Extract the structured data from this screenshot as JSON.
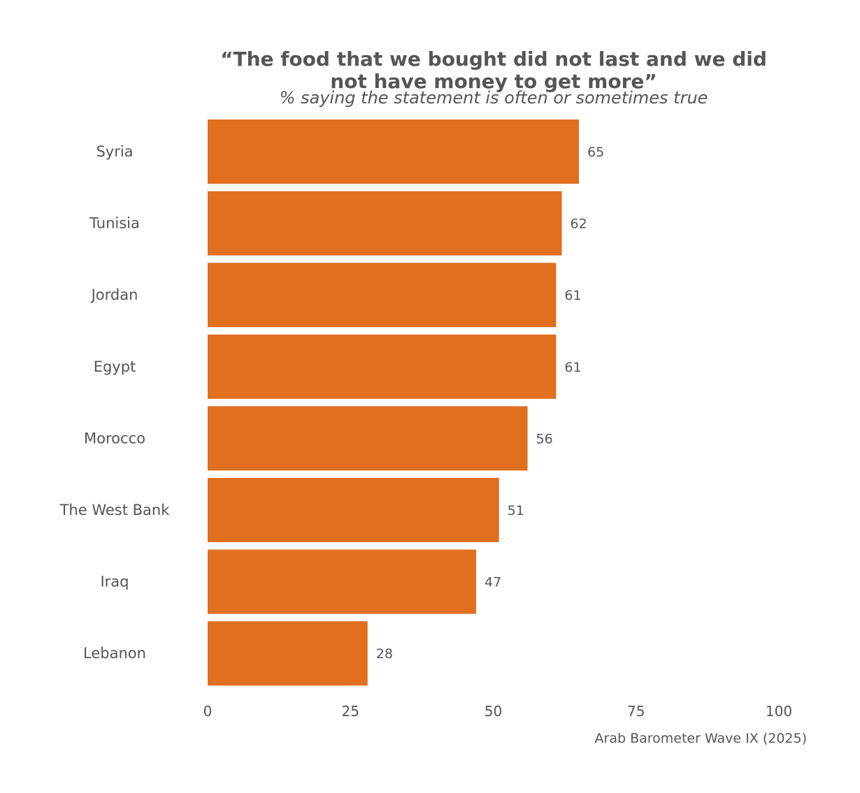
{
  "chart_data": {
    "type": "bar",
    "orientation": "horizontal",
    "title": "“The food that we bought did not last and we did not have money to get more”",
    "title_lines": [
      "“The food that we bought did not last and we did",
      "not have money to get more”"
    ],
    "subtitle": "% saying the statement is often or sometimes true",
    "caption": "Arab Barometer Wave IX (2025)",
    "categories": [
      "Syria",
      "Tunisia",
      "Jordan",
      "Egypt",
      "Morocco",
      "The West Bank",
      "Iraq",
      "Lebanon"
    ],
    "values": [
      65,
      62,
      61,
      61,
      56,
      51,
      47,
      28
    ],
    "data_labels": [
      "65",
      "62",
      "61",
      "61",
      "56",
      "51",
      "47",
      "28"
    ],
    "xlim": [
      0,
      100
    ],
    "xticks": [
      0,
      25,
      50,
      75,
      100
    ],
    "xtick_labels": [
      "0",
      "25",
      "50",
      "75",
      "100"
    ],
    "xlabel": "",
    "ylabel": "",
    "grid": false,
    "bar_color": "#E06F20"
  }
}
